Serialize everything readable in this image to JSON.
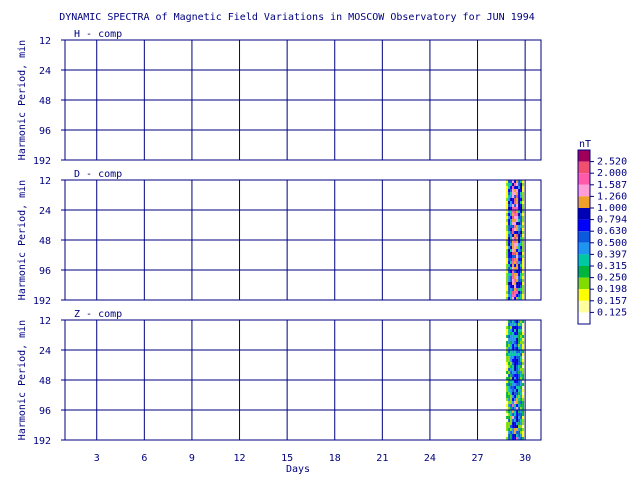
{
  "title": "DYNAMIC SPECTRA of Magnetic Field Variations in MOSCOW Observatory for JUN 1994",
  "ylabel": "Harmonic Period, min",
  "xlabel": "Days",
  "colors": {
    "axis": "#000080",
    "text": "#000080",
    "background": "#ffffff"
  },
  "chart_data": {
    "type": "heatmap",
    "title": "DYNAMIC SPECTRA of Magnetic Field Variations in MOSCOW Observatory for JUN 1994",
    "xlabel": "Days",
    "ylabel": "Harmonic Period, min",
    "xlim": [
      1,
      31
    ],
    "x_ticks": [
      3,
      6,
      9,
      12,
      15,
      18,
      21,
      24,
      27,
      30
    ],
    "x_tick_labels": [
      "3",
      "6",
      "9",
      "12",
      "15",
      "18",
      "21",
      "24",
      "27",
      "30"
    ],
    "y_scale": "log2",
    "y_ticks": [
      12,
      24,
      48,
      96,
      192
    ],
    "y_tick_labels": [
      "12",
      "24",
      "48",
      "96",
      "192"
    ],
    "grid": true,
    "panels": [
      {
        "name": "H - comp",
        "active_days": []
      },
      {
        "name": "D - comp",
        "active_days": [
          28.8,
          29.9
        ]
      },
      {
        "name": "Z - comp",
        "active_days": [
          28.8,
          29.9
        ]
      }
    ],
    "colorbar": {
      "unit": "nT",
      "levels": [
        {
          "label": "2.520",
          "color": "#a0005a"
        },
        {
          "label": "2.000",
          "color": "#f0506e"
        },
        {
          "label": "1.587",
          "color": "#ff5aaa"
        },
        {
          "label": "1.260",
          "color": "#ff9dd6"
        },
        {
          "label": "1.000",
          "color": "#f0a028"
        },
        {
          "label": "0.794",
          "color": "#0000b4"
        },
        {
          "label": "0.630",
          "color": "#0000ff"
        },
        {
          "label": "0.500",
          "color": "#0a5adc"
        },
        {
          "label": "0.397",
          "color": "#1e96f0"
        },
        {
          "label": "0.315",
          "color": "#00c8a0"
        },
        {
          "label": "0.250",
          "color": "#00b43c"
        },
        {
          "label": "0.198",
          "color": "#82dc00"
        },
        {
          "label": "0.157",
          "color": "#ffff00"
        },
        {
          "label": "0.125",
          "color": "#ffff9e"
        }
      ]
    }
  }
}
